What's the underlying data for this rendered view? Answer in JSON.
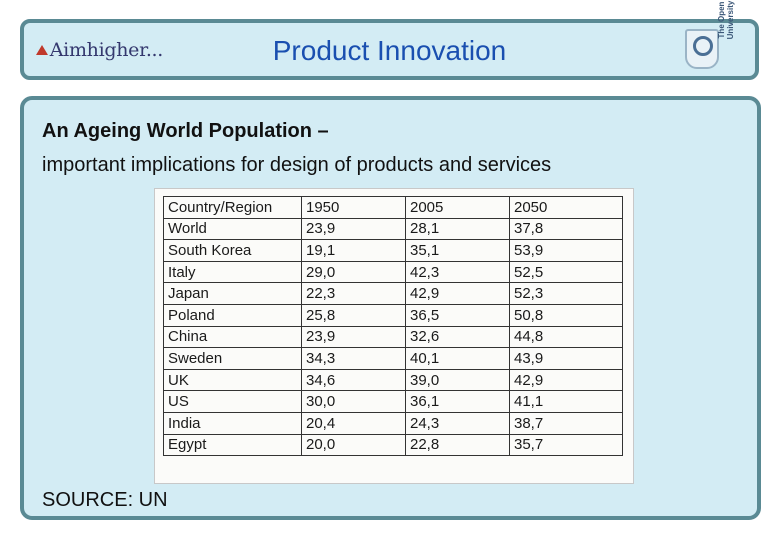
{
  "header": {
    "logo_text": "Aimhigher...",
    "title": "Product Innovation",
    "university_name": "The Open University"
  },
  "slide": {
    "heading": "An Ageing World Population –",
    "subheading": "important implications for design of products and services",
    "source": "SOURCE: UN"
  },
  "table": {
    "headers": [
      "Country/Region",
      "1950",
      "2005",
      "2050"
    ],
    "rows": [
      [
        "World",
        "23,9",
        "28,1",
        "37,8"
      ],
      [
        "South Korea",
        "19,1",
        "35,1",
        "53,9"
      ],
      [
        "Italy",
        "29,0",
        "42,3",
        "52,5"
      ],
      [
        "Japan",
        "22,3",
        "42,9",
        "52,3"
      ],
      [
        "Poland",
        "25,8",
        "36,5",
        "50,8"
      ],
      [
        "China",
        "23,9",
        "32,6",
        "44,8"
      ],
      [
        "Sweden",
        "34,3",
        "40,1",
        "43,9"
      ],
      [
        "UK",
        "34,6",
        "39,0",
        "42,9"
      ],
      [
        "US",
        "30,0",
        "36,1",
        "41,1"
      ],
      [
        "India",
        "20,4",
        "24,3",
        "38,7"
      ],
      [
        "Egypt",
        "20,0",
        "22,8",
        "35,7"
      ]
    ]
  }
}
